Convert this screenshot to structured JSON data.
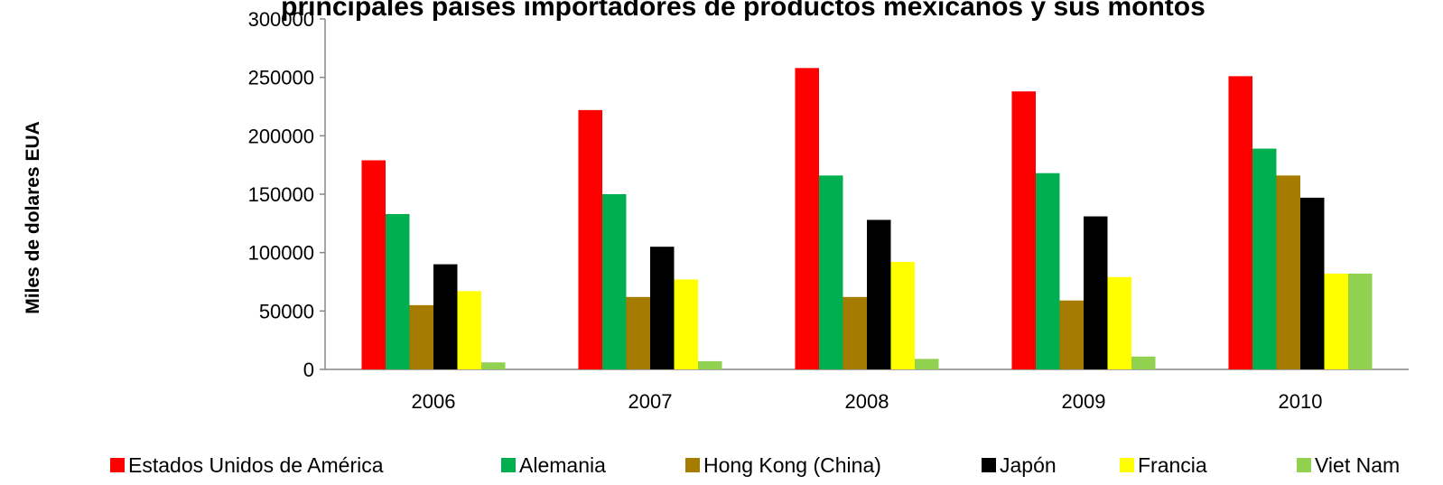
{
  "chart_data": {
    "type": "bar",
    "title": "principales países importadores de productos mexicanos y sus montos",
    "ylabel": "Miles de dolares EUA",
    "xlabel": "",
    "categories": [
      "2006",
      "2007",
      "2008",
      "2009",
      "2010"
    ],
    "ylim": [
      0,
      300000
    ],
    "yticks": [
      0,
      50000,
      100000,
      150000,
      200000,
      250000,
      300000
    ],
    "ytick_labels": [
      "0",
      "50000",
      "100000",
      "150000",
      "200000",
      "250000",
      "300000"
    ],
    "grid": false,
    "legend_position": "bottom",
    "series": [
      {
        "name": "Estados Unidos de América",
        "color": "#ff0000",
        "values": [
          179000,
          222000,
          258000,
          238000,
          251000
        ]
      },
      {
        "name": "Alemania",
        "color": "#00b050",
        "values": [
          133000,
          150000,
          166000,
          168000,
          189000
        ]
      },
      {
        "name": "Hong Kong (China)",
        "color": "#a67c00",
        "values": [
          55000,
          62000,
          62000,
          59000,
          166000
        ]
      },
      {
        "name": "Japón",
        "color": "#000000",
        "values": [
          90000,
          105000,
          128000,
          131000,
          147000
        ]
      },
      {
        "name": "Francia",
        "color": "#ffff00",
        "values": [
          67000,
          77000,
          92000,
          79000,
          82000
        ]
      },
      {
        "name": "Viet Nam",
        "color": "#92d050",
        "values": [
          6000,
          7000,
          9000,
          11000,
          82000
        ]
      }
    ]
  }
}
